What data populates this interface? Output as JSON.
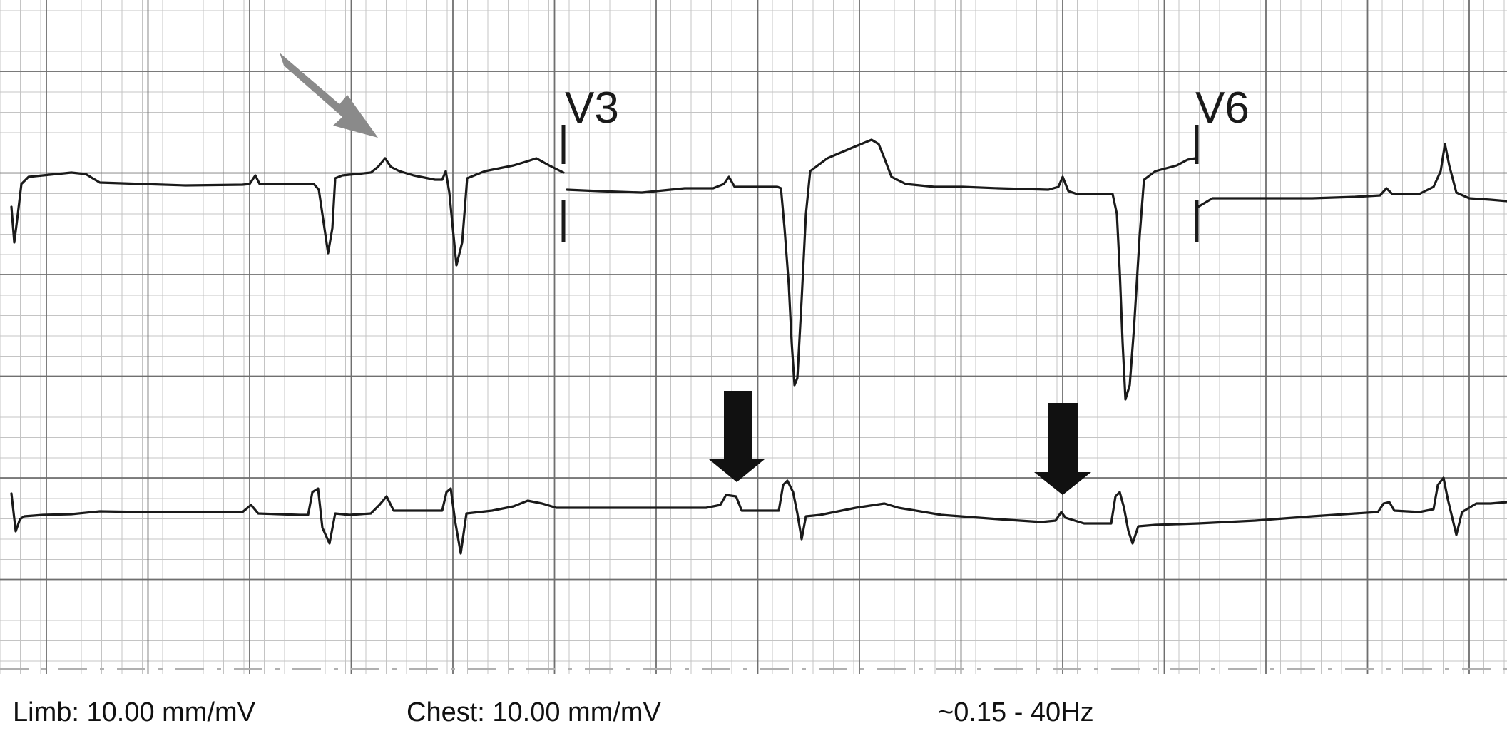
{
  "leads": {
    "v3": "V3",
    "v6": "V6"
  },
  "footer": {
    "limb_scale": "Limb: 10.00 mm/mV",
    "chest_scale": "Chest: 10.00 mm/mV",
    "filter_band": "~0.15 - 40Hz"
  },
  "colors": {
    "paper": "#ffffff",
    "major_grid": "#6f6f6f",
    "minor_grid": "#c4c4c4",
    "trace": "#1a1a1a",
    "annotation_arrow_gray": "#8a8a8a",
    "annotation_arrow_black": "#111111"
  },
  "annotations": [
    {
      "icon": "gray-diagonal-arrow-icon"
    },
    {
      "icon": "black-down-arrow-icon"
    },
    {
      "icon": "black-down-arrow-icon"
    }
  ]
}
